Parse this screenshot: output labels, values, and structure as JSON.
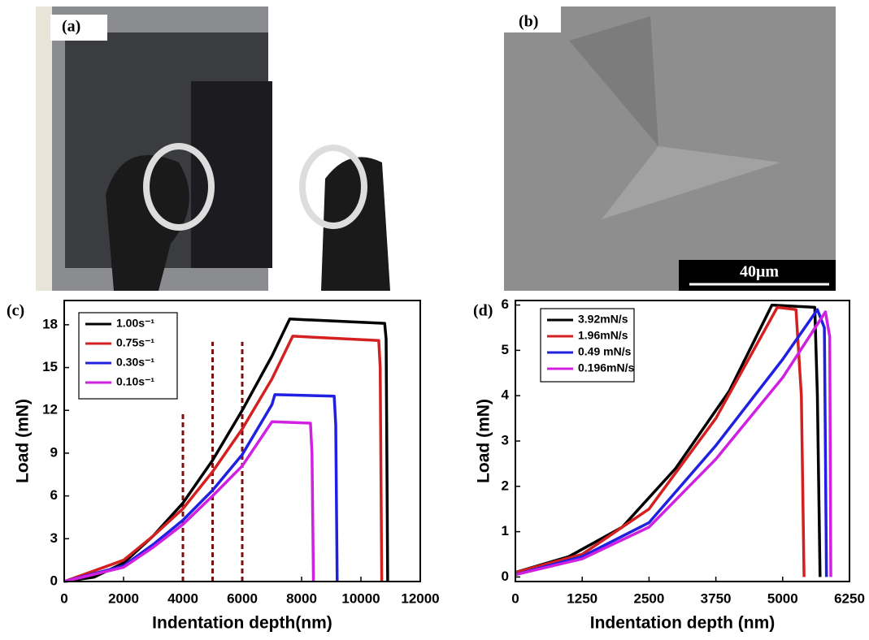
{
  "images": [
    {
      "label": "(a)"
    },
    {
      "label": "(b)",
      "scale_bar": "40μm"
    }
  ],
  "chart_data": [
    {
      "type": "line",
      "label": "(c)",
      "xlabel": "Indentation depth(nm)",
      "ylabel": "Load (mN)",
      "xlim": [
        0,
        12000
      ],
      "xticks": [
        0,
        2000,
        4000,
        6000,
        8000,
        10000,
        12000
      ],
      "ylim": [
        0,
        19.7
      ],
      "yticks": [
        0,
        3,
        6,
        9,
        12,
        15,
        18
      ],
      "legend": "upper left",
      "series": [
        {
          "name": "1.00s⁻¹",
          "color": "#000000",
          "x": [
            0,
            1000,
            2000,
            3000,
            4000,
            5000,
            6000,
            7000,
            7600,
            10800,
            10850,
            10900
          ],
          "values": [
            0,
            0.3,
            1.3,
            3.2,
            5.5,
            8.5,
            12,
            15.8,
            18.4,
            18.1,
            17,
            0
          ]
        },
        {
          "name": "0.75s⁻¹",
          "color": "#d42020",
          "x": [
            0,
            2000,
            3000,
            4000,
            5000,
            6000,
            7000,
            7700,
            10600,
            10650,
            10700
          ],
          "values": [
            0,
            1.5,
            3.2,
            5.1,
            7.7,
            10.7,
            14.2,
            17.2,
            16.9,
            15,
            0
          ]
        },
        {
          "name": "0.30s⁻¹",
          "color": "#2020e0",
          "x": [
            0,
            2000,
            3000,
            4000,
            5000,
            6000,
            7000,
            7100,
            9100,
            9150,
            9200
          ],
          "values": [
            0,
            1.1,
            2.6,
            4.3,
            6.4,
            8.9,
            12.4,
            13.1,
            13,
            11,
            0
          ]
        },
        {
          "name": "0.10s⁻¹",
          "color": "#d020e0",
          "x": [
            0,
            2000,
            3000,
            4000,
            5000,
            6000,
            7000,
            8300,
            8350,
            8400
          ],
          "values": [
            0,
            1,
            2.4,
            4,
            6,
            8.1,
            11.2,
            11.1,
            9,
            0
          ]
        }
      ],
      "markers": [
        {
          "x": 4000,
          "top": 11.8
        },
        {
          "x": 5000,
          "top": 16.8
        },
        {
          "x": 6000,
          "top": 16.8
        }
      ],
      "marker_color": "#7a1010"
    },
    {
      "type": "line",
      "label": "(d)",
      "xlabel": "Indentation depth (nm)",
      "ylabel": "Load (mN)",
      "xlim": [
        0,
        6250
      ],
      "xticks": [
        0,
        1250,
        2500,
        3750,
        5000,
        6250
      ],
      "ylim": [
        -0.1,
        6.1
      ],
      "yticks": [
        0,
        1,
        2,
        3,
        4,
        5,
        6
      ],
      "legend": "upper left",
      "series": [
        {
          "name": "3.92mN/s",
          "color": "#000000",
          "x": [
            0,
            1000,
            2000,
            3000,
            4000,
            4800,
            5600,
            5650,
            5700
          ],
          "values": [
            0.1,
            0.45,
            1.1,
            2.4,
            4.1,
            6,
            5.95,
            4,
            0
          ]
        },
        {
          "name": "1.96mN/s",
          "color": "#d42020",
          "x": [
            0,
            1250,
            2500,
            3750,
            4900,
            5250,
            5350,
            5400
          ],
          "values": [
            0.1,
            0.5,
            1.5,
            3.5,
            5.95,
            5.9,
            4,
            0
          ]
        },
        {
          "name": "0.49 mN/s",
          "color": "#2020e0",
          "x": [
            0,
            1250,
            2500,
            3750,
            5000,
            5650,
            5780,
            5820
          ],
          "values": [
            0.05,
            0.45,
            1.2,
            2.9,
            4.8,
            5.9,
            5.5,
            0
          ]
        },
        {
          "name": "0.196mN/s",
          "color": "#d020e0",
          "x": [
            0,
            1250,
            2500,
            3750,
            5000,
            5800,
            5880,
            5900
          ],
          "values": [
            0.05,
            0.4,
            1.1,
            2.6,
            4.4,
            5.85,
            5.3,
            0
          ]
        }
      ]
    }
  ]
}
